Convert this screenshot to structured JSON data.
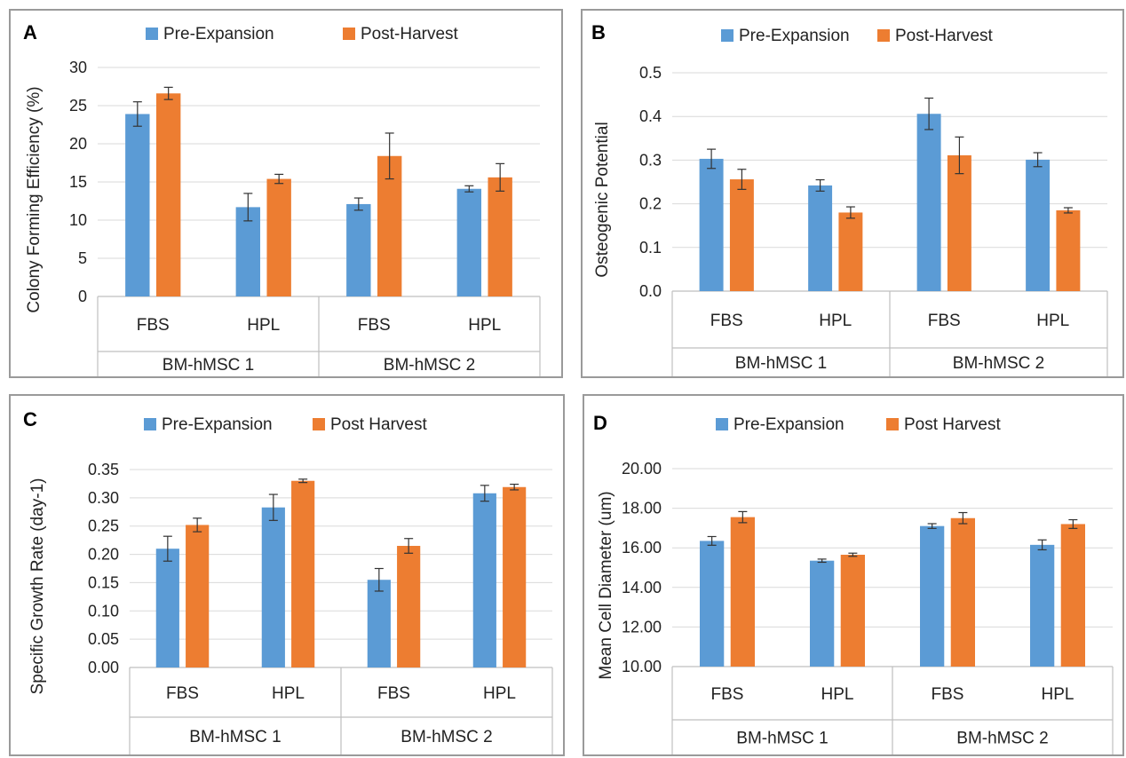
{
  "colors": {
    "pre": "#5b9bd5",
    "post": "#ed7d31",
    "grid": "#d9d9d9",
    "axis": "#bfbfbf",
    "text": "#222222"
  },
  "chart_data": [
    {
      "type": "bar",
      "panel_label": "A",
      "ylabel": "Colony Forming Efficiency (%)",
      "ylim": [
        0,
        30
      ],
      "yticks": [
        "0",
        "5",
        "10",
        "15",
        "20",
        "25",
        "30"
      ],
      "categories": [
        "FBS",
        "HPL",
        "FBS",
        "HPL"
      ],
      "groups": [
        "BM-hMSC 1",
        "BM-hMSC 2"
      ],
      "legend_position": "top",
      "grid": true,
      "series": [
        {
          "name": "Pre-Expansion",
          "values": [
            23.9,
            11.7,
            12.1,
            14.1
          ],
          "errors": [
            1.6,
            1.8,
            0.8,
            0.4
          ]
        },
        {
          "name": "Post-Harvest",
          "values": [
            26.6,
            15.4,
            18.4,
            15.6
          ],
          "errors": [
            0.8,
            0.6,
            3.0,
            1.8
          ]
        }
      ]
    },
    {
      "type": "bar",
      "panel_label": "B",
      "ylabel": "Osteogenic Potential",
      "ylim": [
        0,
        0.5
      ],
      "yticks": [
        "0.0",
        "0.1",
        "0.2",
        "0.3",
        "0.4",
        "0.5"
      ],
      "categories": [
        "FBS",
        "HPL",
        "FBS",
        "HPL"
      ],
      "groups": [
        "BM-hMSC 1",
        "BM-hMSC 2"
      ],
      "legend_position": "top",
      "grid": true,
      "series": [
        {
          "name": "Pre-Expansion",
          "values": [
            0.303,
            0.242,
            0.406,
            0.301
          ],
          "errors": [
            0.022,
            0.013,
            0.036,
            0.016
          ]
        },
        {
          "name": "Post-Harvest",
          "values": [
            0.256,
            0.18,
            0.311,
            0.185
          ],
          "errors": [
            0.023,
            0.013,
            0.042,
            0.006
          ]
        }
      ]
    },
    {
      "type": "bar",
      "panel_label": "C",
      "ylabel": "Specific Growth Rate (day-1)",
      "ylim": [
        0,
        0.35
      ],
      "yticks": [
        "0.00",
        "0.05",
        "0.10",
        "0.15",
        "0.20",
        "0.25",
        "0.30",
        "0.35"
      ],
      "categories": [
        "FBS",
        "HPL",
        "FBS",
        "HPL"
      ],
      "groups": [
        "BM-hMSC 1",
        "BM-hMSC 2"
      ],
      "legend_position": "top",
      "grid": true,
      "series": [
        {
          "name": "Pre-Expansion",
          "values": [
            0.21,
            0.283,
            0.155,
            0.308
          ],
          "errors": [
            0.022,
            0.023,
            0.02,
            0.014
          ]
        },
        {
          "name": "Post Harvest",
          "values": [
            0.252,
            0.33,
            0.215,
            0.319
          ],
          "errors": [
            0.012,
            0.003,
            0.013,
            0.005
          ]
        }
      ]
    },
    {
      "type": "bar",
      "panel_label": "D",
      "ylabel": "Mean Cell Diameter (um)",
      "ylim": [
        10,
        20
      ],
      "yticks": [
        "10.00",
        "12.00",
        "14.00",
        "16.00",
        "18.00",
        "20.00"
      ],
      "categories": [
        "FBS",
        "HPL",
        "FBS",
        "HPL"
      ],
      "groups": [
        "BM-hMSC 1",
        "BM-hMSC 2"
      ],
      "legend_position": "top",
      "grid": true,
      "series": [
        {
          "name": "Pre-Expansion",
          "values": [
            16.35,
            15.35,
            17.1,
            16.15
          ],
          "errors": [
            0.22,
            0.08,
            0.12,
            0.25
          ]
        },
        {
          "name": "Post Harvest",
          "values": [
            17.55,
            15.65,
            17.5,
            17.2
          ],
          "errors": [
            0.28,
            0.08,
            0.28,
            0.22
          ]
        }
      ]
    }
  ]
}
